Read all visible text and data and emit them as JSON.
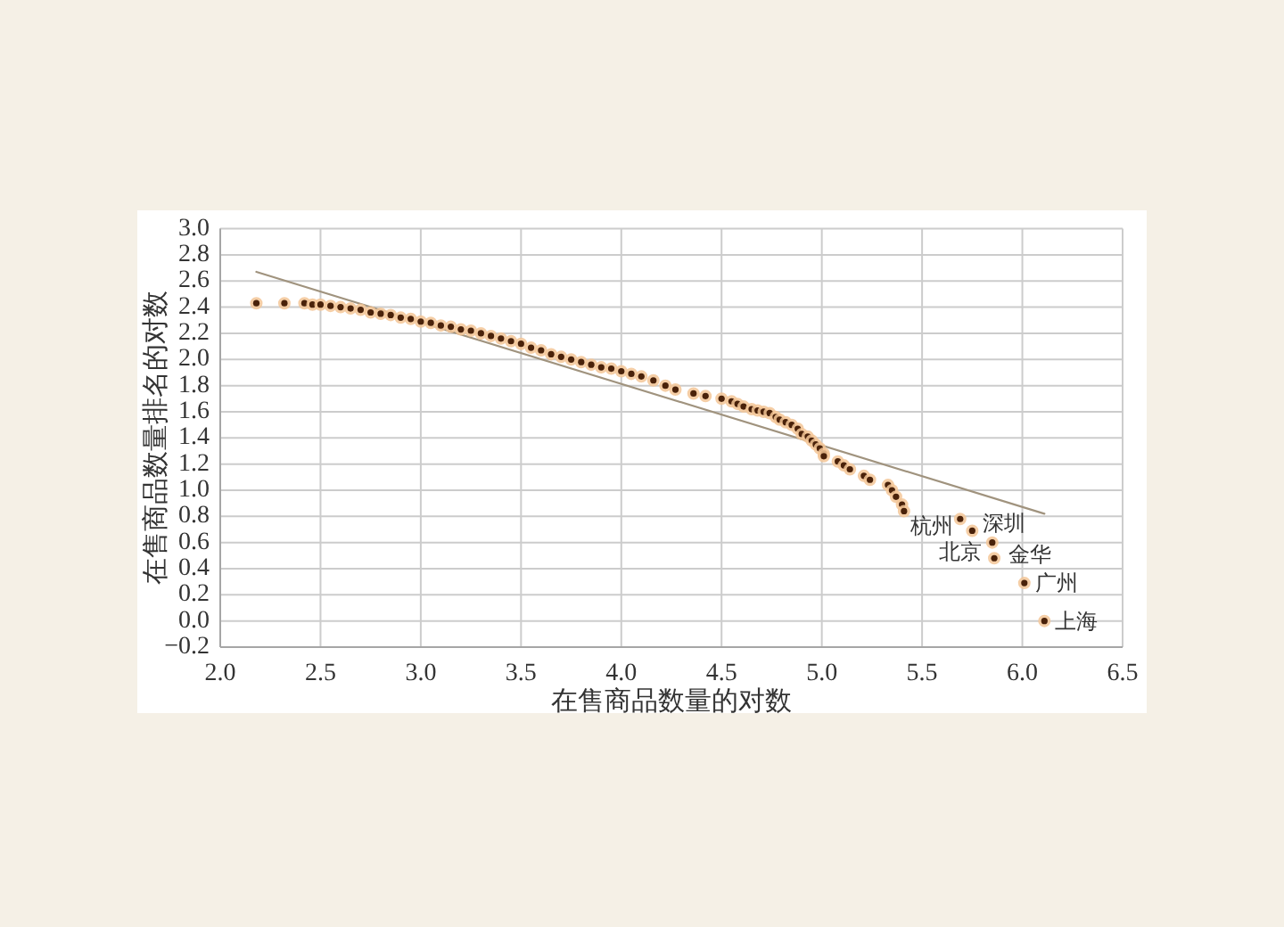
{
  "chart_data": {
    "type": "scatter",
    "xlabel": "在售商品数量的对数",
    "ylabel": "在售商品数量排名的对数",
    "xlim": [
      2,
      6.5
    ],
    "ylim": [
      -0.2,
      3.0
    ],
    "xticks": [
      {
        "value": 2,
        "label": "2.0"
      },
      2.5,
      {
        "value": 3,
        "label": "3.0"
      },
      3.5,
      {
        "value": 4,
        "label": "4.0"
      },
      4.5,
      {
        "value": 5,
        "label": "5.0"
      },
      5.5,
      {
        "value": 6,
        "label": "6.0"
      },
      6.5
    ],
    "yticks": [
      {
        "value": -0.2,
        "label": "−0.2"
      },
      {
        "value": 0,
        "label": "0.0"
      },
      0.2,
      0.4,
      0.6,
      0.8,
      {
        "value": 1,
        "label": "1.0"
      },
      1.2,
      1.4,
      1.6,
      1.8,
      {
        "value": 2,
        "label": "2.0"
      },
      2.2,
      2.4,
      2.6,
      2.8,
      {
        "value": 3,
        "label": "3.0"
      }
    ],
    "grid": true,
    "marker": "circle",
    "series": [
      {
        "type": "line",
        "color": "#a0937e",
        "marker": "none",
        "x": [
          2.18,
          6.11
        ],
        "values": [
          2.67,
          0.82
        ]
      },
      {
        "color": "#4a220a",
        "x": [
          2.18,
          2.32,
          2.42,
          2.46,
          2.5,
          2.55,
          2.6,
          2.65,
          2.7,
          2.75,
          2.8,
          2.85,
          2.9,
          2.95,
          3.0,
          3.05,
          3.1,
          3.15,
          3.2,
          3.25,
          3.3,
          3.35,
          3.4,
          3.45,
          3.5,
          3.55,
          3.6,
          3.65,
          3.7,
          3.75,
          3.8,
          3.85,
          3.9,
          3.95,
          4.0,
          4.05,
          4.1,
          4.16,
          4.22,
          4.27,
          4.36,
          4.42,
          4.5,
          4.55,
          4.58,
          4.61,
          4.65,
          4.68,
          4.71,
          4.74,
          4.77,
          4.79,
          4.82,
          4.85,
          4.88,
          4.9,
          4.93,
          4.95,
          4.97,
          4.99,
          5.01,
          5.01,
          5.08,
          5.11,
          5.14,
          5.21,
          5.24,
          5.33,
          5.35,
          5.37,
          5.4,
          5.41,
          5.69,
          5.75,
          5.85,
          5.86,
          6.01,
          6.11
        ],
        "values": [
          2.43,
          2.43,
          2.43,
          2.42,
          2.42,
          2.41,
          2.4,
          2.39,
          2.38,
          2.36,
          2.35,
          2.34,
          2.32,
          2.31,
          2.29,
          2.28,
          2.26,
          2.25,
          2.23,
          2.22,
          2.2,
          2.18,
          2.16,
          2.14,
          2.12,
          2.09,
          2.07,
          2.04,
          2.02,
          2.0,
          1.98,
          1.96,
          1.94,
          1.93,
          1.91,
          1.89,
          1.87,
          1.84,
          1.8,
          1.77,
          1.74,
          1.72,
          1.7,
          1.68,
          1.66,
          1.64,
          1.62,
          1.61,
          1.6,
          1.59,
          1.56,
          1.54,
          1.52,
          1.5,
          1.47,
          1.43,
          1.41,
          1.38,
          1.35,
          1.32,
          1.28,
          1.26,
          1.22,
          1.19,
          1.16,
          1.11,
          1.08,
          1.04,
          1.0,
          0.95,
          0.89,
          0.84,
          0.78,
          0.69,
          0.6,
          0.48,
          0.29,
          0
        ]
      }
    ],
    "annotations": [
      {
        "text": "杭州",
        "x": 5.69,
        "y": 0.78
      },
      {
        "text": "深圳",
        "x": 5.75,
        "y": 0.69
      },
      {
        "text": "北京",
        "x": 5.85,
        "y": 0.6
      },
      {
        "text": "金华",
        "x": 5.86,
        "y": 0.48
      },
      {
        "text": "广州",
        "x": 6.01,
        "y": 0.29
      },
      {
        "text": "上海",
        "x": 6.11,
        "y": 0
      }
    ]
  }
}
